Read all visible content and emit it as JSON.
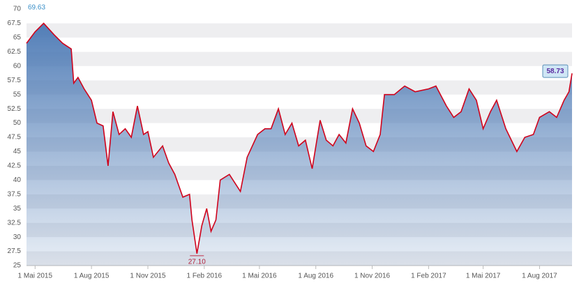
{
  "chart_data": {
    "type": "area",
    "line_color": "#d0021b",
    "fill_color": "#4a78b4",
    "x": [
      "2015-04-17",
      "2015-05-01",
      "2015-05-15",
      "2015-06-01",
      "2015-06-15",
      "2015-06-29",
      "2015-07-03",
      "2015-07-10",
      "2015-07-20",
      "2015-08-01",
      "2015-08-10",
      "2015-08-20",
      "2015-08-28",
      "2015-09-05",
      "2015-09-15",
      "2015-09-25",
      "2015-10-05",
      "2015-10-15",
      "2015-10-25",
      "2015-11-01",
      "2015-11-10",
      "2015-11-25",
      "2015-12-05",
      "2015-12-15",
      "2015-12-28",
      "2016-01-08",
      "2016-01-12",
      "2016-01-20",
      "2016-01-28",
      "2016-02-05",
      "2016-02-12",
      "2016-02-20",
      "2016-02-27",
      "2016-03-13",
      "2016-03-31",
      "2016-04-11",
      "2016-04-28",
      "2016-05-10",
      "2016-05-20",
      "2016-06-01",
      "2016-06-12",
      "2016-06-23",
      "2016-07-04",
      "2016-07-15",
      "2016-07-26",
      "2016-08-08",
      "2016-08-18",
      "2016-08-29",
      "2016-09-08",
      "2016-09-19",
      "2016-09-30",
      "2016-10-11",
      "2016-10-22",
      "2016-11-03",
      "2016-11-14",
      "2016-11-21",
      "2016-12-07",
      "2016-12-24",
      "2017-01-10",
      "2017-02-01",
      "2017-02-13",
      "2017-03-02",
      "2017-03-14",
      "2017-03-26",
      "2017-04-08",
      "2017-04-20",
      "2017-05-01",
      "2017-05-13",
      "2017-05-23",
      "2017-06-07",
      "2017-06-25",
      "2017-07-08",
      "2017-07-22",
      "2017-08-01",
      "2017-08-17",
      "2017-08-29",
      "2017-09-10",
      "2017-09-18",
      "2017-09-23"
    ],
    "values": [
      64,
      66,
      67.5,
      65.5,
      64,
      63,
      57,
      58,
      56,
      54,
      50,
      49.5,
      42.5,
      52,
      48,
      49,
      47.5,
      53,
      48,
      48.5,
      44,
      46,
      43,
      41,
      37,
      37.5,
      33,
      27.1,
      32,
      35,
      31,
      33,
      40,
      41,
      38,
      44,
      48,
      49,
      49,
      52.5,
      48,
      50,
      46,
      47,
      42,
      50.5,
      47,
      46,
      48,
      46.5,
      52.5,
      50,
      46,
      45,
      48,
      55,
      55,
      56.5,
      55.5,
      56,
      56.5,
      53,
      51,
      52,
      56,
      54,
      49,
      52,
      54,
      49,
      45,
      47.5,
      48,
      51,
      52,
      51,
      54,
      55.5,
      58.73
    ],
    "xlim": [
      "2015-04-17",
      "2017-09-23"
    ],
    "xticks": [
      {
        "value": "2015-05-01",
        "label": "1 Mai 2015"
      },
      {
        "value": "2015-08-01",
        "label": "1 Aug 2015"
      },
      {
        "value": "2015-11-01",
        "label": "1 Nov 2015"
      },
      {
        "value": "2016-02-01",
        "label": "1 Feb 2016"
      },
      {
        "value": "2016-05-01",
        "label": "1 Mai 2016"
      },
      {
        "value": "2016-08-01",
        "label": "1 Aug 2016"
      },
      {
        "value": "2016-11-01",
        "label": "1 Nov 2016"
      },
      {
        "value": "2017-02-01",
        "label": "1 Feb 2017"
      },
      {
        "value": "2017-05-01",
        "label": "1 Mai 2017"
      },
      {
        "value": "2017-08-01",
        "label": "1 Aug 2017"
      }
    ],
    "ylim": [
      25,
      70
    ],
    "yticks": [
      25,
      27.5,
      30,
      32.5,
      35,
      37.5,
      40,
      42.5,
      45,
      47.5,
      50,
      52.5,
      55,
      57.5,
      60,
      62.5,
      65,
      67.5,
      70
    ],
    "grid": true,
    "annotations": {
      "max": "69.63",
      "min": "27.10",
      "last": "58.73"
    }
  }
}
